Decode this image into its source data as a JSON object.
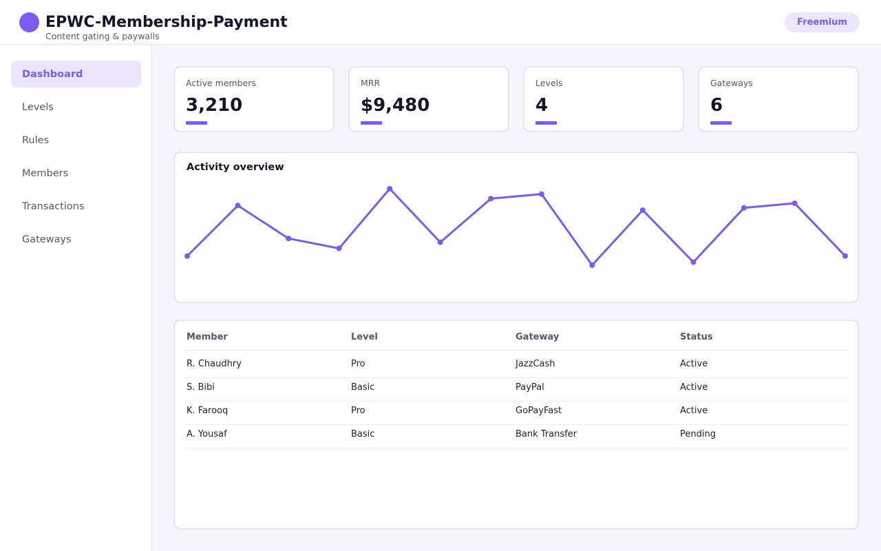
{
  "header": {
    "title": "EPWC-Membership-Payment",
    "subtitle": "Content gating & paywalls",
    "plan_badge": "Freemium"
  },
  "sidebar": {
    "items": [
      {
        "label": "Dashboard",
        "active": true
      },
      {
        "label": "Levels",
        "active": false
      },
      {
        "label": "Rules",
        "active": false
      },
      {
        "label": "Members",
        "active": false
      },
      {
        "label": "Transactions",
        "active": false
      },
      {
        "label": "Gateways",
        "active": false
      }
    ]
  },
  "stats": [
    {
      "label": "Active members",
      "value": "3,210"
    },
    {
      "label": "MRR",
      "value": "$9,480"
    },
    {
      "label": "Levels",
      "value": "4"
    },
    {
      "label": "Gateways",
      "value": "6"
    }
  ],
  "activity": {
    "title": "Activity overview"
  },
  "chart_data": {
    "type": "line",
    "title": "Activity overview",
    "x": [
      1,
      2,
      3,
      4,
      5,
      6,
      7,
      8,
      9,
      10,
      11,
      12,
      13,
      14
    ],
    "series": [
      {
        "values": [
          12,
          78,
          35,
          22,
          100,
          30,
          87,
          93,
          0,
          72,
          4,
          75,
          81,
          12
        ]
      }
    ],
    "ylim": [
      0,
      100
    ],
    "grid": false,
    "legend": "none",
    "color": "#7a5cf5"
  },
  "members_table": {
    "columns": [
      "Member",
      "Level",
      "Gateway",
      "Status"
    ],
    "rows": [
      [
        "R. Chaudhry",
        "Pro",
        "JazzCash",
        "Active"
      ],
      [
        "S. Bibi",
        "Basic",
        "PayPal",
        "Active"
      ],
      [
        "K. Farooq",
        "Pro",
        "GoPayFast",
        "Active"
      ],
      [
        "A. Yousaf",
        "Basic",
        "Bank Transfer",
        "Pending"
      ]
    ]
  },
  "colors": {
    "accent": "#7a5cf5",
    "accent_soft": "#ebe6fd",
    "background": "#f6f5fb",
    "border": "#e4e3f3"
  }
}
